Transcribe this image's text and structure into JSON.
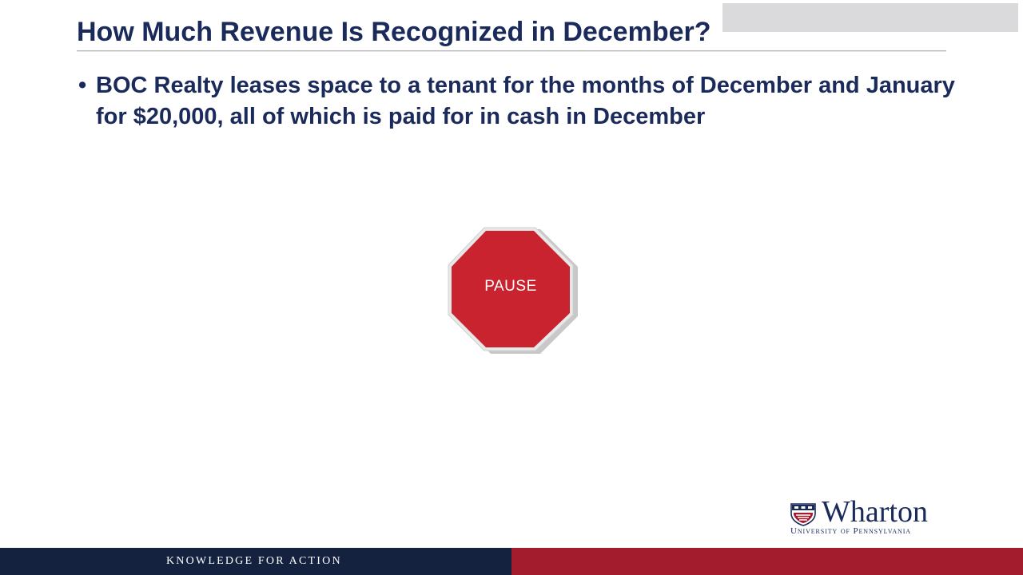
{
  "slide": {
    "title": "How Much Revenue Is Recognized in December?",
    "bullets": [
      {
        "marker": "•",
        "text": "BOC Realty leases space to a tenant for the months of December and January for $20,000, all of which is paid for in cash in December"
      }
    ],
    "stop_sign": {
      "label": "PAUSE",
      "icon": "stop-sign-icon",
      "color": "#c8232f"
    },
    "logo": {
      "icon": "penn-shield-icon",
      "wordmark": "Wharton",
      "subtitle": "University of Pennsylvania"
    },
    "footer": {
      "tagline": "KNOWLEDGE FOR ACTION",
      "left_color": "#14213f",
      "right_color": "#a31c2e"
    }
  },
  "colors": {
    "title_text": "#1a2a5a",
    "background": "#ffffff"
  }
}
